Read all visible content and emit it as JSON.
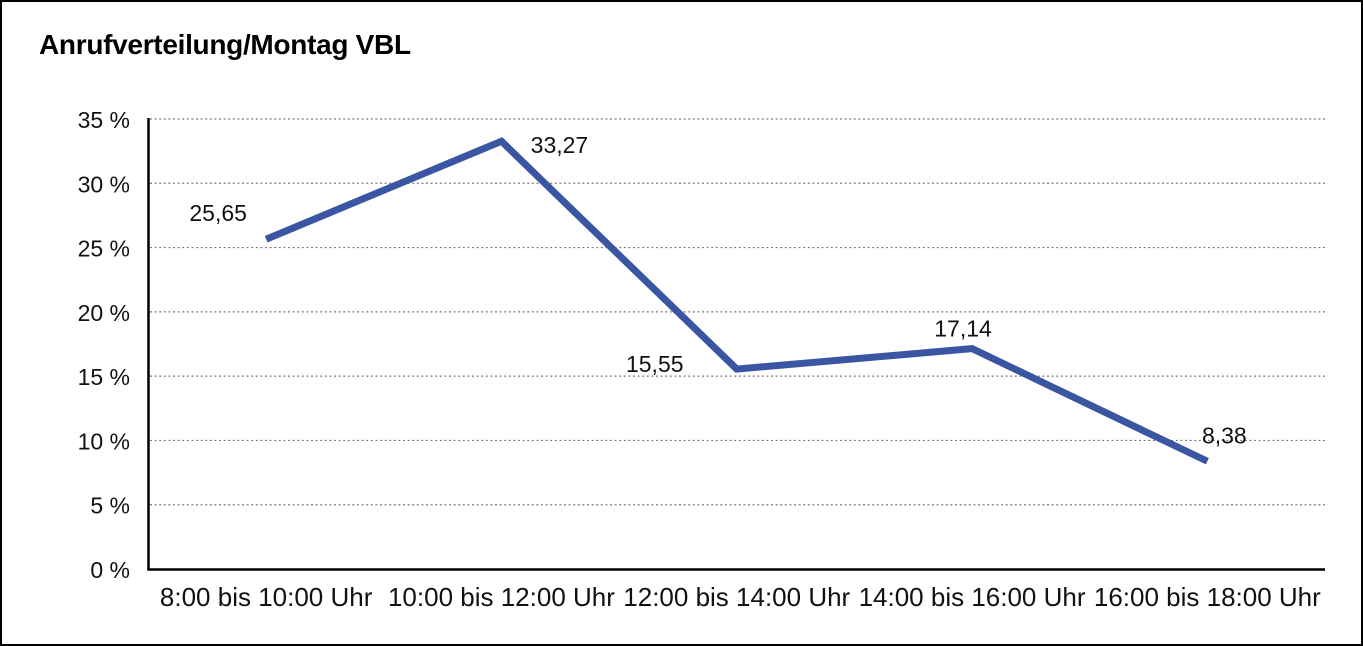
{
  "chart_data": {
    "type": "line",
    "title": "Anrufverteilung/Montag VBL",
    "categories": [
      "8:00 bis 10:00 Uhr",
      "10:00 bis 12:00 Uhr",
      "12:00 bis 14:00 Uhr",
      "14:00 bis 16:00 Uhr",
      "16:00 bis 18:00 Uhr"
    ],
    "values": [
      25.65,
      33.27,
      15.55,
      17.14,
      8.38
    ],
    "data_labels": [
      "25,65",
      "33,27",
      "15,55",
      "17,14",
      "8,38"
    ],
    "xlabel": "",
    "ylabel": "",
    "ylim": [
      0,
      35
    ],
    "y_tick_step": 5,
    "y_tick_labels": [
      "0 %",
      "5 %",
      "10 %",
      "15 %",
      "20 %",
      "25 %",
      "30 %",
      "35 %"
    ],
    "grid": "horizontal-dotted",
    "legend": "none",
    "colors": {
      "line": "#3A56A3",
      "axis": "#000000",
      "gridline": "#7a7a7a",
      "text": "#111111",
      "background": "#ffffff",
      "frame_border": "#000000"
    }
  }
}
